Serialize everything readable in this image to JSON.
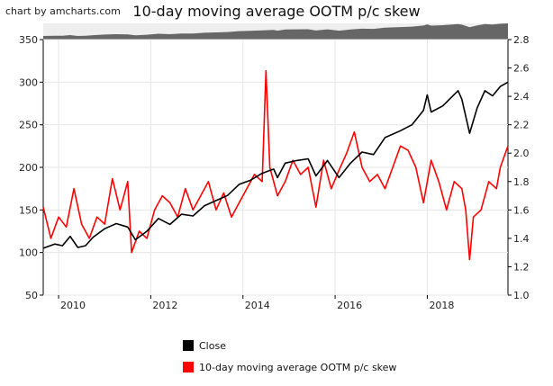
{
  "credit": "chart by amcharts.com",
  "chart_data": {
    "type": "line",
    "title": "10-day moving average OOTM p/c skew",
    "xlabel": "",
    "ylabel": "",
    "x_range": [
      "2009-09",
      "2019-10"
    ],
    "x_ticks": [
      "2010",
      "2012",
      "2014",
      "2016",
      "2018"
    ],
    "y_left": {
      "range": [
        50,
        350
      ],
      "ticks": [
        "50",
        "100",
        "150",
        "200",
        "250",
        "300",
        "350"
      ]
    },
    "y_right": {
      "range": [
        1.0,
        2.8
      ],
      "ticks": [
        "1.0",
        "1.2",
        "1.4",
        "1.6",
        "1.8",
        "2.0",
        "2.2",
        "2.4",
        "2.6",
        "2.8"
      ]
    },
    "grid": true,
    "navigator": true,
    "legend_position": "bottom",
    "series": [
      {
        "name": "Close",
        "color": "#000000",
        "axis": "left",
        "points": [
          [
            "2009-09",
            105
          ],
          [
            "2009-12",
            110
          ],
          [
            "2010-02",
            108
          ],
          [
            "2010-04",
            119
          ],
          [
            "2010-06",
            106
          ],
          [
            "2010-08",
            108
          ],
          [
            "2010-10",
            118
          ],
          [
            "2011-01",
            128
          ],
          [
            "2011-04",
            134
          ],
          [
            "2011-07",
            130
          ],
          [
            "2011-09",
            115
          ],
          [
            "2011-12",
            125
          ],
          [
            "2012-03",
            140
          ],
          [
            "2012-06",
            133
          ],
          [
            "2012-09",
            145
          ],
          [
            "2012-12",
            143
          ],
          [
            "2013-03",
            155
          ],
          [
            "2013-06",
            161
          ],
          [
            "2013-09",
            167
          ],
          [
            "2013-12",
            180
          ],
          [
            "2014-03",
            185
          ],
          [
            "2014-06",
            193
          ],
          [
            "2014-09",
            198
          ],
          [
            "2014-10",
            188
          ],
          [
            "2014-12",
            205
          ],
          [
            "2015-03",
            208
          ],
          [
            "2015-06",
            210
          ],
          [
            "2015-08",
            190
          ],
          [
            "2015-11",
            208
          ],
          [
            "2016-02",
            188
          ],
          [
            "2016-05",
            205
          ],
          [
            "2016-08",
            218
          ],
          [
            "2016-11",
            215
          ],
          [
            "2017-02",
            235
          ],
          [
            "2017-06",
            243
          ],
          [
            "2017-09",
            250
          ],
          [
            "2017-12",
            267
          ],
          [
            "2018-01",
            285
          ],
          [
            "2018-02",
            265
          ],
          [
            "2018-05",
            272
          ],
          [
            "2018-09",
            290
          ],
          [
            "2018-10",
            280
          ],
          [
            "2018-12",
            240
          ],
          [
            "2019-02",
            270
          ],
          [
            "2019-04",
            290
          ],
          [
            "2019-06",
            284
          ],
          [
            "2019-08",
            295
          ],
          [
            "2019-10",
            300
          ]
        ]
      },
      {
        "name": "10-day moving average OOTM p/c skew",
        "color": "#ff0000",
        "axis": "right",
        "points": [
          [
            "2009-09",
            1.62
          ],
          [
            "2009-11",
            1.4
          ],
          [
            "2010-01",
            1.55
          ],
          [
            "2010-03",
            1.48
          ],
          [
            "2010-05",
            1.75
          ],
          [
            "2010-07",
            1.5
          ],
          [
            "2010-09",
            1.4
          ],
          [
            "2010-11",
            1.55
          ],
          [
            "2011-01",
            1.5
          ],
          [
            "2011-03",
            1.82
          ],
          [
            "2011-05",
            1.6
          ],
          [
            "2011-07",
            1.8
          ],
          [
            "2011-08",
            1.3
          ],
          [
            "2011-10",
            1.45
          ],
          [
            "2011-12",
            1.4
          ],
          [
            "2012-02",
            1.6
          ],
          [
            "2012-04",
            1.7
          ],
          [
            "2012-06",
            1.65
          ],
          [
            "2012-08",
            1.55
          ],
          [
            "2012-10",
            1.75
          ],
          [
            "2012-12",
            1.6
          ],
          [
            "2013-02",
            1.7
          ],
          [
            "2013-04",
            1.8
          ],
          [
            "2013-06",
            1.6
          ],
          [
            "2013-08",
            1.72
          ],
          [
            "2013-10",
            1.55
          ],
          [
            "2013-12",
            1.65
          ],
          [
            "2014-02",
            1.75
          ],
          [
            "2014-04",
            1.85
          ],
          [
            "2014-06",
            1.8
          ],
          [
            "2014-07",
            2.58
          ],
          [
            "2014-08",
            1.9
          ],
          [
            "2014-10",
            1.7
          ],
          [
            "2014-12",
            1.8
          ],
          [
            "2015-02",
            1.95
          ],
          [
            "2015-04",
            1.85
          ],
          [
            "2015-06",
            1.9
          ],
          [
            "2015-08",
            1.62
          ],
          [
            "2015-10",
            1.95
          ],
          [
            "2015-12",
            1.75
          ],
          [
            "2016-02",
            1.88
          ],
          [
            "2016-04",
            2.0
          ],
          [
            "2016-06",
            2.15
          ],
          [
            "2016-08",
            1.9
          ],
          [
            "2016-10",
            1.8
          ],
          [
            "2016-12",
            1.85
          ],
          [
            "2017-02",
            1.75
          ],
          [
            "2017-04",
            1.9
          ],
          [
            "2017-06",
            2.05
          ],
          [
            "2017-08",
            2.02
          ],
          [
            "2017-10",
            1.9
          ],
          [
            "2017-12",
            1.65
          ],
          [
            "2018-02",
            1.95
          ],
          [
            "2018-04",
            1.8
          ],
          [
            "2018-06",
            1.6
          ],
          [
            "2018-08",
            1.8
          ],
          [
            "2018-10",
            1.75
          ],
          [
            "2018-11",
            1.6
          ],
          [
            "2018-12",
            1.25
          ],
          [
            "2019-01",
            1.55
          ],
          [
            "2019-03",
            1.6
          ],
          [
            "2019-05",
            1.8
          ],
          [
            "2019-07",
            1.75
          ],
          [
            "2019-08",
            1.9
          ],
          [
            "2019-10",
            2.05
          ]
        ]
      }
    ]
  },
  "legend": [
    {
      "label": "Close",
      "color": "#000000"
    },
    {
      "label": "10-day moving average OOTM p/c skew",
      "color": "#ff0000"
    }
  ]
}
